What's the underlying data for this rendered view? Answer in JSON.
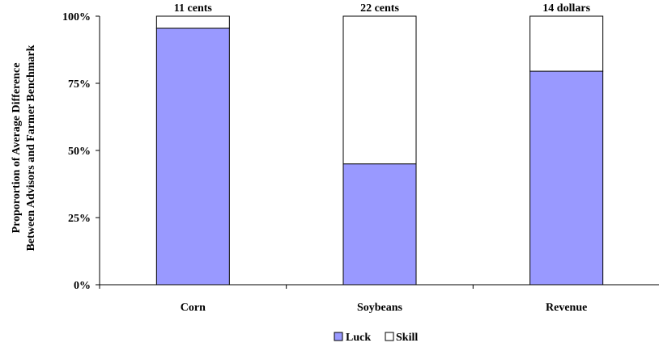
{
  "chart_data": {
    "type": "bar",
    "stacked": true,
    "categories": [
      "Corn",
      "Soybeans",
      "Revenue"
    ],
    "series": [
      {
        "name": "Luck",
        "values": [
          95.5,
          45,
          79.5
        ],
        "color": "#9999ff"
      },
      {
        "name": "Skill",
        "values": [
          4.5,
          55,
          20.5
        ],
        "color": "#ffffff"
      }
    ],
    "bar_top_labels": [
      "11 cents",
      "22 cents",
      "14 dollars"
    ],
    "ylabel_lines": [
      "Proporortion of Average Difference",
      "Between Advisors and Farmer Benchmark"
    ],
    "xlabel": "",
    "ylim": [
      0,
      100
    ],
    "yticks": [
      "0%",
      "25%",
      "50%",
      "75%",
      "100%"
    ],
    "grid": false,
    "legend_position": "bottom-center"
  }
}
